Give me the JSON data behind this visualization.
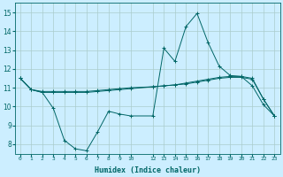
{
  "xlabel": "Humidex (Indice chaleur)",
  "bg_color": "#cceeff",
  "grid_color": "#aacccc",
  "line_color": "#006666",
  "x_values": [
    0,
    1,
    2,
    3,
    4,
    5,
    6,
    7,
    8,
    9,
    10,
    12,
    13,
    14,
    15,
    16,
    17,
    18,
    19,
    20,
    21,
    22,
    23
  ],
  "line1": [
    11.5,
    10.9,
    10.8,
    10.8,
    10.8,
    10.8,
    10.8,
    10.85,
    10.9,
    10.95,
    11.0,
    11.05,
    11.1,
    11.15,
    11.2,
    11.3,
    11.4,
    11.5,
    11.55,
    11.55,
    11.45,
    10.4,
    9.5
  ],
  "line2": [
    11.5,
    10.9,
    10.75,
    10.75,
    10.75,
    10.75,
    10.75,
    10.8,
    10.85,
    10.9,
    10.95,
    11.05,
    11.1,
    11.15,
    11.25,
    11.35,
    11.45,
    11.55,
    11.6,
    11.6,
    11.5,
    10.4,
    9.5
  ],
  "line3": [
    11.5,
    10.9,
    10.75,
    9.9,
    8.2,
    7.75,
    7.65,
    8.65,
    9.75,
    9.6,
    9.5,
    9.5,
    13.1,
    12.4,
    14.25,
    14.95,
    13.4,
    12.15,
    11.65,
    11.6,
    11.1,
    10.1,
    9.5
  ],
  "ylim": [
    7.5,
    15.5
  ],
  "yticks": [
    8,
    9,
    10,
    11,
    12,
    13,
    14,
    15
  ],
  "xticks": [
    0,
    1,
    2,
    3,
    4,
    5,
    6,
    7,
    8,
    9,
    10,
    12,
    13,
    14,
    15,
    16,
    17,
    18,
    19,
    20,
    21,
    22,
    23
  ],
  "xtick_labels": [
    "0",
    "1",
    "2",
    "3",
    "4",
    "5",
    "6",
    "7",
    "8",
    "9",
    "10",
    "12",
    "13",
    "14",
    "15",
    "16",
    "17",
    "18",
    "19",
    "20",
    "21",
    "22",
    "23"
  ]
}
